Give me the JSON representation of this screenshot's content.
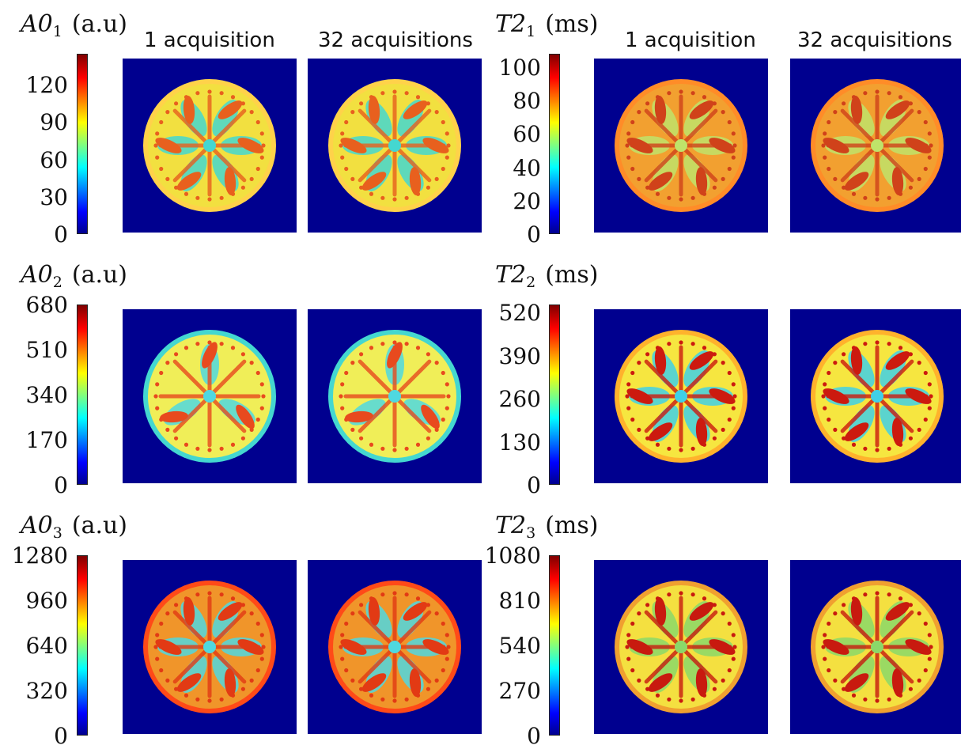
{
  "column_headers": [
    "1 acquisition",
    "32 acquisitions"
  ],
  "rows": [
    {
      "left": {
        "sym": "A0",
        "sub": "1",
        "unit": "(a.u)",
        "ticks": [
          "0",
          "30",
          "60",
          "90",
          "120"
        ],
        "tick_values": [
          0,
          30,
          60,
          90,
          120
        ],
        "max": 145
      },
      "right": {
        "sym": "T2",
        "sub": "1",
        "unit": "(ms)",
        "ticks": [
          "0",
          "20",
          "40",
          "60",
          "80",
          "100"
        ],
        "tick_values": [
          0,
          20,
          40,
          60,
          80,
          100
        ],
        "max": 108
      },
      "show_headers": true
    },
    {
      "left": {
        "sym": "A0",
        "sub": "2",
        "unit": "(a.u)",
        "ticks": [
          "0",
          "170",
          "340",
          "510",
          "680"
        ],
        "tick_values": [
          0,
          170,
          340,
          510,
          680
        ],
        "max": 680
      },
      "right": {
        "sym": "T2",
        "sub": "2",
        "unit": "(ms)",
        "ticks": [
          "0",
          "130",
          "260",
          "390",
          "520"
        ],
        "tick_values": [
          0,
          130,
          260,
          390,
          520
        ],
        "max": 545
      },
      "show_headers": false
    },
    {
      "left": {
        "sym": "A0",
        "sub": "3",
        "unit": "(a.u)",
        "ticks": [
          "0",
          "320",
          "640",
          "960",
          "1280"
        ],
        "tick_values": [
          0,
          320,
          640,
          960,
          1280
        ],
        "max": 1280
      },
      "right": {
        "sym": "T2",
        "sub": "3",
        "unit": "(ms)",
        "ticks": [
          "0",
          "270",
          "540",
          "810",
          "1080"
        ],
        "tick_values": [
          0,
          270,
          540,
          810,
          1080
        ],
        "max": 1080
      },
      "show_headers": false
    }
  ],
  "colors": {
    "background": "#00008f",
    "colormap": [
      "#00008f",
      "#0000ff",
      "#00ffff",
      "#ffff00",
      "#ff0000",
      "#800000"
    ]
  },
  "panel_styles": [
    {
      "disk": "#f2e040",
      "rim": "#ffd24a",
      "pattern": "#e8601e",
      "pattern2": "#44d7d0"
    },
    {
      "disk": "#f2a030",
      "rim": "#ff8c28",
      "pattern": "#d0421a",
      "pattern2": "#bfe36a"
    },
    {
      "disk": "#f0ee58",
      "rim": "#44d7d0",
      "pattern": "#e84a1e",
      "pattern2": "#4fd8e0"
    },
    {
      "disk": "#f6e640",
      "rim": "#ffb22c",
      "pattern": "#cc1a0f",
      "pattern2": "#3fd0e8"
    },
    {
      "disk": "#f0952a",
      "rim": "#ff4a18",
      "pattern": "#e23a14",
      "pattern2": "#4fd8e0"
    },
    {
      "disk": "#f4e040",
      "rim": "#f0a030",
      "pattern": "#c81a0f",
      "pattern2": "#8ad86a"
    }
  ]
}
